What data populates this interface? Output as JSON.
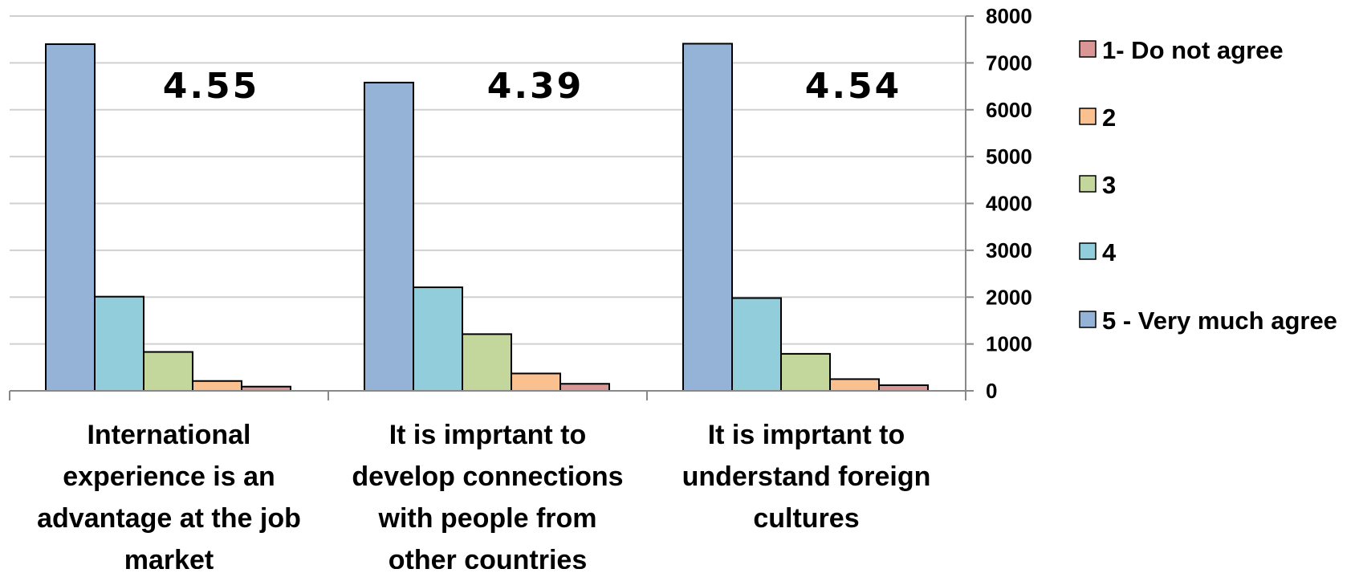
{
  "chart_data": {
    "type": "bar",
    "categories": [
      [
        "International",
        "experience is an",
        "advantage at the job",
        "market"
      ],
      [
        "It is imprtant to",
        "develop connections",
        "with people from",
        "other countries"
      ],
      [
        "It is imprtant to",
        "understand foreign",
        "cultures"
      ]
    ],
    "series": [
      {
        "name": "5 - Very much agree",
        "color": "#95b3d7",
        "values": [
          7400,
          6580,
          7410
        ]
      },
      {
        "name": "4",
        "color": "#92cddc",
        "values": [
          2010,
          2210,
          1980
        ]
      },
      {
        "name": "3",
        "color": "#c3d69b",
        "values": [
          830,
          1210,
          790
        ]
      },
      {
        "name": "2",
        "color": "#fac090",
        "values": [
          210,
          370,
          250
        ]
      },
      {
        "name": "1- Do not agree",
        "color": "#d99694",
        "values": [
          90,
          150,
          120
        ]
      }
    ],
    "legend_order": [
      "1- Do not agree",
      "2",
      "3",
      "4",
      "5 - Very much agree"
    ],
    "legend_position": "right",
    "mean_labels": [
      "4.55",
      "4.39",
      "4.54"
    ],
    "yaxis": {
      "position": "right",
      "ticks": [
        "0",
        "1000",
        "2000",
        "3000",
        "4000",
        "5000",
        "6000",
        "7000",
        "8000"
      ]
    },
    "ylim": [
      0,
      8000
    ],
    "grid": true,
    "title": "",
    "xlabel": "",
    "ylabel": ""
  }
}
